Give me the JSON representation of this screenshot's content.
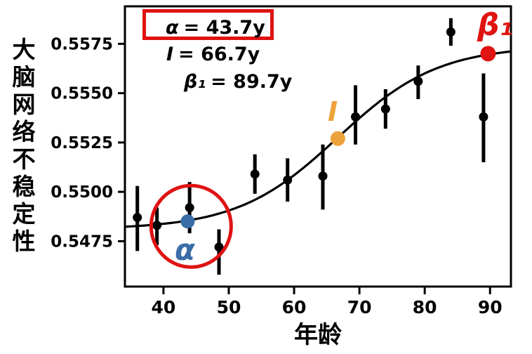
{
  "figure": {
    "background": "#ffffff",
    "accent_red": "#df1312",
    "accent_blue": "#3a6ca8",
    "accent_orange": "#eda33b"
  },
  "chart_data": {
    "type": "scatter",
    "title": "",
    "xlabel": "年龄",
    "ylabel": "大脑网络不稳定性",
    "xlim": [
      34.1,
      93.2
    ],
    "ylim": [
      0.5452,
      0.5594
    ],
    "grid": false,
    "legend": "none",
    "xticks": [
      "40",
      "50",
      "60",
      "70",
      "80",
      "90"
    ],
    "yticks": [
      "0.5475",
      "0.5500",
      "0.5525",
      "0.5550",
      "0.5575"
    ],
    "series": [
      {
        "name": "observed-binned-instability",
        "marker": "dot-with-vertical-errorbar",
        "color": "#000000",
        "points": [
          {
            "x": 36.0,
            "y": 0.5487,
            "y_lo": 0.547,
            "y_hi": 0.5503
          },
          {
            "x": 39.0,
            "y": 0.5483,
            "y_lo": 0.5473,
            "y_hi": 0.5492
          },
          {
            "x": 44.0,
            "y": 0.5492,
            "y_lo": 0.5479,
            "y_hi": 0.5505
          },
          {
            "x": 48.5,
            "y": 0.5472,
            "y_lo": 0.5458,
            "y_hi": 0.5481
          },
          {
            "x": 54.0,
            "y": 0.5509,
            "y_lo": 0.5499,
            "y_hi": 0.5519
          },
          {
            "x": 59.0,
            "y": 0.5506,
            "y_lo": 0.5495,
            "y_hi": 0.5517
          },
          {
            "x": 64.4,
            "y": 0.5508,
            "y_lo": 0.5491,
            "y_hi": 0.5524
          },
          {
            "x": 69.4,
            "y": 0.5538,
            "y_lo": 0.5524,
            "y_hi": 0.5554
          },
          {
            "x": 74.0,
            "y": 0.5542,
            "y_lo": 0.5532,
            "y_hi": 0.5552
          },
          {
            "x": 79.0,
            "y": 0.5556,
            "y_lo": 0.5547,
            "y_hi": 0.5564
          },
          {
            "x": 84.0,
            "y": 0.5581,
            "y_lo": 0.5574,
            "y_hi": 0.5588
          },
          {
            "x": 89.0,
            "y": 0.5538,
            "y_lo": 0.5515,
            "y_hi": 0.556
          }
        ]
      }
    ],
    "fit_curve": {
      "form": "logistic",
      "color": "#000000",
      "lower": 0.5481,
      "amplitude": 0.0093,
      "k": 0.13,
      "x0": 66.7
    },
    "special_points": [
      {
        "name": "alpha",
        "label": "α",
        "x": 43.7,
        "y": 0.5485,
        "color": "#3a6ca8",
        "circled": true
      },
      {
        "name": "inflection",
        "label": "I",
        "x": 66.7,
        "y": 0.5527,
        "color": "#eda33b",
        "circled": false
      },
      {
        "name": "beta1",
        "label": "β₁",
        "x": 89.7,
        "y": 0.557,
        "color": "#df1312",
        "circled": false
      }
    ],
    "annotation_box": {
      "box_color": "#df1312",
      "lines": [
        {
          "lhs": "α",
          "rhs": "= 43.7y",
          "boxed": true
        },
        {
          "lhs": "I",
          "rhs": "= 66.7y",
          "boxed": false
        },
        {
          "lhs": "β₁",
          "rhs": "= 89.7y",
          "boxed": false
        }
      ]
    },
    "highlight_circle": {
      "around": "alpha",
      "color": "#df1312"
    }
  }
}
